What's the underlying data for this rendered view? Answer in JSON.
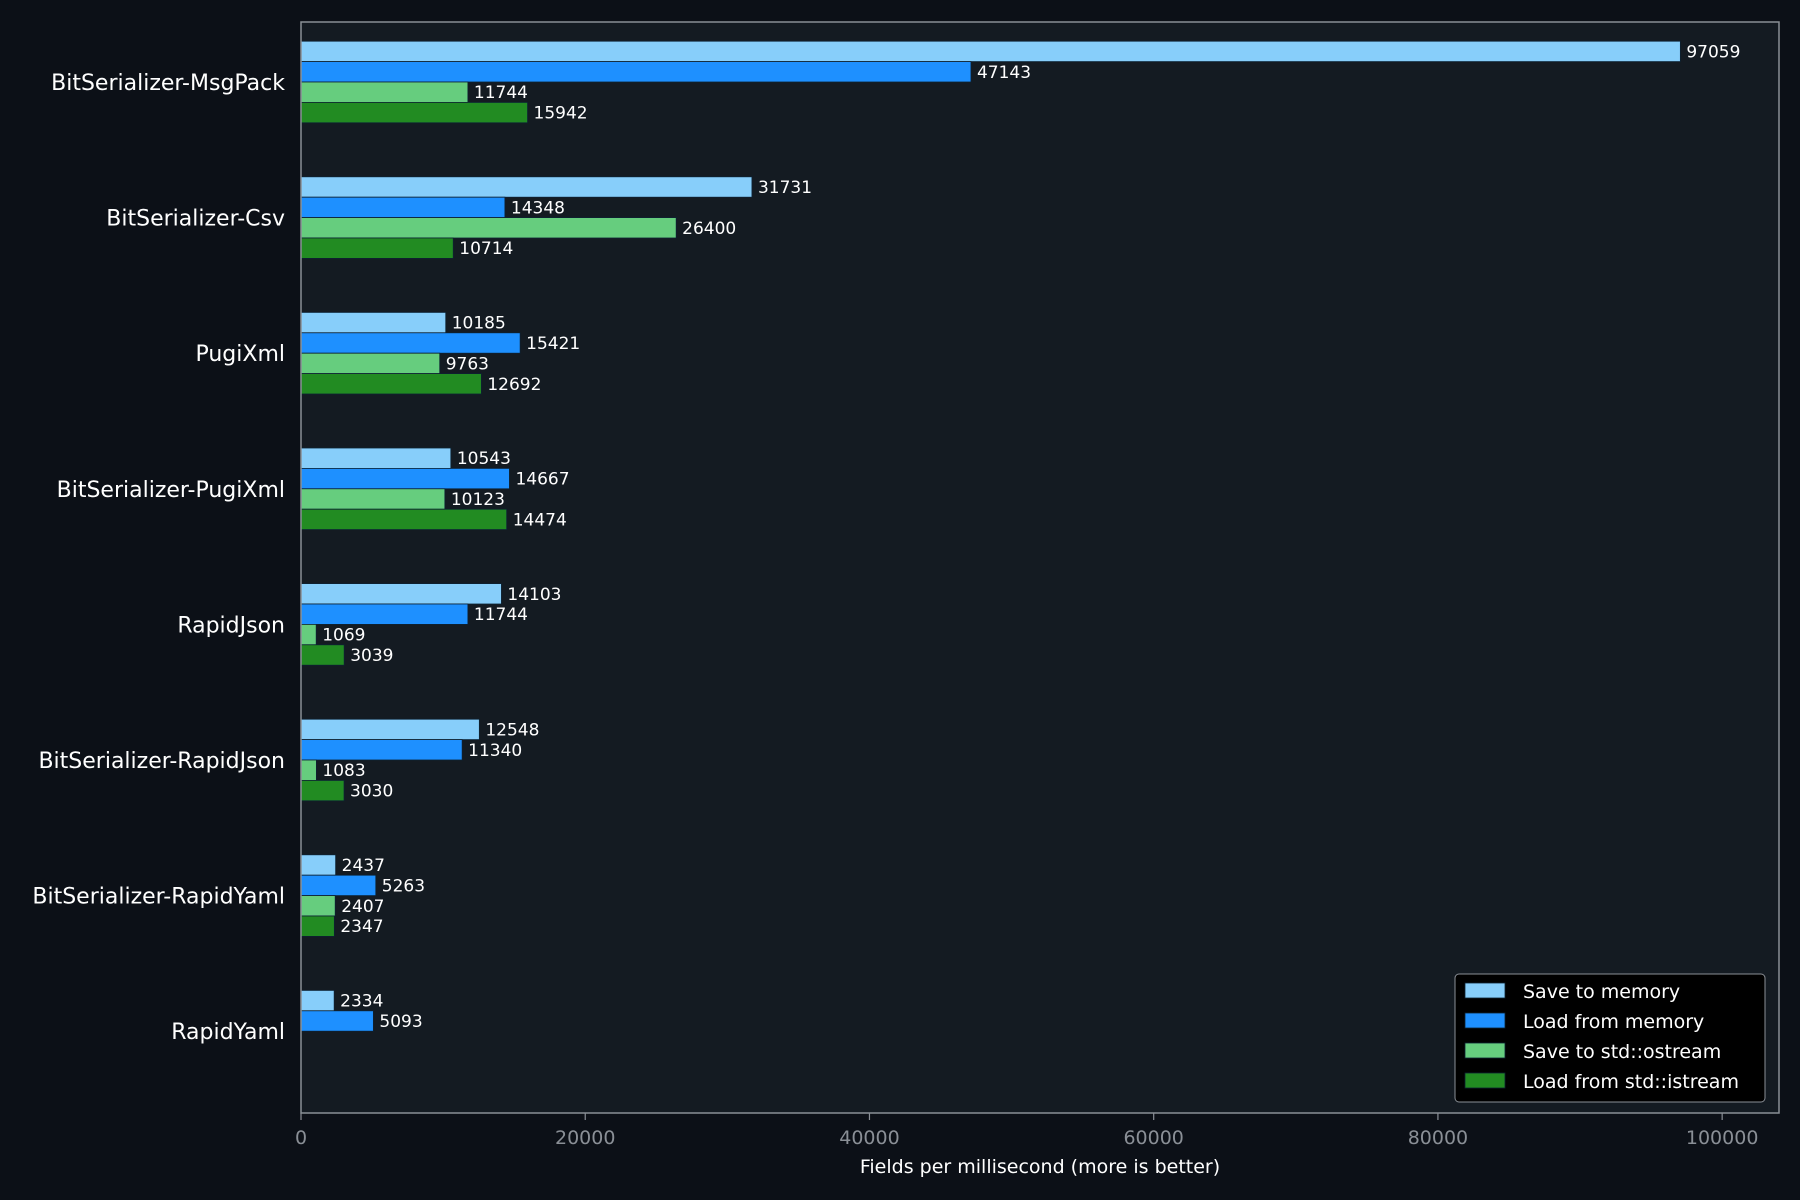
{
  "chart_data": {
    "type": "bar",
    "orientation": "horizontal",
    "xlabel": "Fields per millisecond (more is better)",
    "xlim": [
      0,
      104000
    ],
    "xticks": [
      0,
      20000,
      40000,
      60000,
      80000,
      100000
    ],
    "grid": false,
    "legend_position": "bottom-right",
    "categories": [
      "BitSerializer-MsgPack",
      "BitSerializer-Csv",
      "PugiXml",
      "BitSerializer-PugiXml",
      "RapidJson",
      "BitSerializer-RapidJson",
      "BitSerializer-RapidYaml",
      "RapidYaml"
    ],
    "series": [
      {
        "name": "Save to memory",
        "color": "#87cefa",
        "values": [
          97059,
          31731,
          10185,
          10543,
          14103,
          12548,
          2437,
          2334
        ]
      },
      {
        "name": "Load from memory",
        "color": "#1e90ff",
        "values": [
          47143,
          14348,
          15421,
          14667,
          11744,
          11340,
          5263,
          5093
        ]
      },
      {
        "name": "Save to std::ostream",
        "color": "#66cd7e",
        "values": [
          11744,
          26400,
          9763,
          10123,
          1069,
          1083,
          2407,
          null
        ]
      },
      {
        "name": "Load from std::istream",
        "color": "#228b22",
        "values": [
          15942,
          10714,
          12692,
          14474,
          3039,
          3030,
          2347,
          null
        ]
      }
    ]
  },
  "colors": {
    "page_background": "#0c1017",
    "plot_background": "#141b22",
    "axis": "#8a8f96",
    "text": "#ffffff",
    "legend_background": "#000000"
  }
}
